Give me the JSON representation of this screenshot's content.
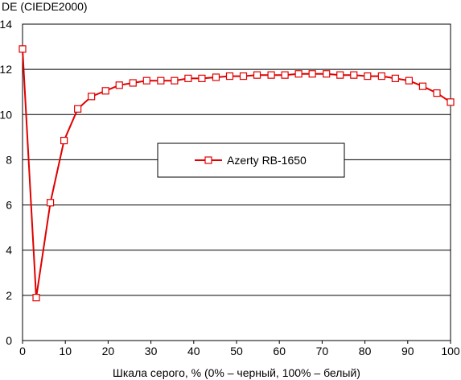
{
  "chart_data": {
    "type": "line",
    "ylabel": "DE (CIEDE2000)",
    "xlabel": "Шкала серого, % (0% – черный, 100% – белый)",
    "xlim": [
      0,
      100
    ],
    "ylim": [
      0,
      14
    ],
    "x_ticks": [
      "0",
      "10",
      "20",
      "30",
      "40",
      "50",
      "60",
      "70",
      "80",
      "90",
      "100"
    ],
    "y_ticks": [
      "0",
      "2",
      "4",
      "6",
      "8",
      "10",
      "12",
      "14"
    ],
    "grid": "horizontal",
    "legend_position": "center",
    "series": [
      {
        "name": "Azerty RB-1650",
        "color": "#e00000",
        "marker": "square-open",
        "x": [
          0,
          3.2,
          6.5,
          9.7,
          12.9,
          16.1,
          19.4,
          22.6,
          25.8,
          29.0,
          32.3,
          35.5,
          38.7,
          41.9,
          45.2,
          48.4,
          51.6,
          54.8,
          58.1,
          61.3,
          64.5,
          67.7,
          71.0,
          74.2,
          77.4,
          80.6,
          83.9,
          87.1,
          90.3,
          93.5,
          96.8,
          100
        ],
        "y": [
          12.9,
          1.9,
          6.1,
          8.85,
          10.25,
          10.8,
          11.05,
          11.3,
          11.4,
          11.5,
          11.5,
          11.5,
          11.6,
          11.6,
          11.65,
          11.7,
          11.7,
          11.75,
          11.75,
          11.75,
          11.8,
          11.8,
          11.8,
          11.75,
          11.75,
          11.7,
          11.7,
          11.6,
          11.5,
          11.25,
          10.95,
          10.55
        ]
      }
    ]
  }
}
